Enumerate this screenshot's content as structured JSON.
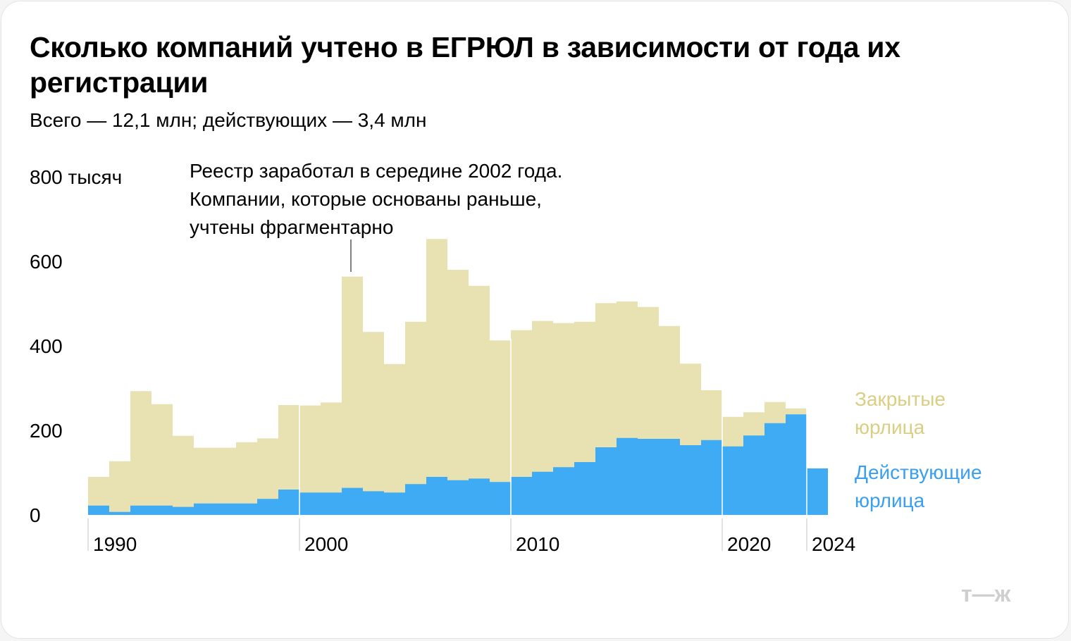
{
  "title": "Сколько компаний учтено в ЕГРЮЛ в зависимости от года их регистрации",
  "subtitle": "Всего — 12,1 млн; действующих — 3,4 млн",
  "logo_text": "т—ж",
  "chart_data": {
    "type": "area",
    "stacked": true,
    "step": true,
    "x": [
      1990,
      1991,
      1992,
      1993,
      1994,
      1995,
      1996,
      1997,
      1998,
      1999,
      2000,
      2001,
      2002,
      2003,
      2004,
      2005,
      2006,
      2007,
      2008,
      2009,
      2010,
      2011,
      2012,
      2013,
      2014,
      2015,
      2016,
      2017,
      2018,
      2019,
      2020,
      2021,
      2022,
      2023,
      2024
    ],
    "series": [
      {
        "name": "Действующие юрлица",
        "color": "#40abf5",
        "values": [
          22,
          7,
          22,
          22,
          19,
          27,
          27,
          27,
          38,
          60,
          53,
          53,
          64,
          56,
          53,
          73,
          90,
          82,
          86,
          78,
          90,
          102,
          113,
          125,
          160,
          182,
          180,
          180,
          165,
          177,
          162,
          188,
          217,
          238,
          110
        ]
      },
      {
        "name": "Закрытые юрлица",
        "color": "#e8e1b1",
        "values": [
          68,
          120,
          271,
          240,
          168,
          132,
          132,
          145,
          143,
          200,
          206,
          213,
          500,
          377,
          304,
          384,
          563,
          498,
          456,
          335,
          347,
          357,
          341,
          332,
          341,
          323,
          312,
          267,
          193,
          118,
          70,
          55,
          50,
          14,
          0
        ]
      }
    ],
    "totals": [
      90,
      127,
      293,
      262,
      187,
      159,
      159,
      172,
      181,
      260,
      259,
      266,
      564,
      433,
      357,
      457,
      653,
      580,
      542,
      413,
      437,
      459,
      454,
      457,
      501,
      505,
      492,
      447,
      358,
      295,
      232,
      243,
      267,
      252,
      110
    ],
    "xticks": [
      "1990",
      "2000",
      "2010",
      "2020",
      "2024"
    ],
    "yticks": [
      "0",
      "200",
      "400",
      "600",
      "800 тысяч"
    ],
    "ylim": [
      0,
      800
    ],
    "annotation": {
      "x": 2002,
      "lines": [
        "Реестр заработал в середине 2002 года.",
        "Компании, которые основаны раньше,",
        "учтены фрагментарно"
      ]
    },
    "legend": [
      {
        "lines": [
          "Закрытые",
          "юрлица"
        ],
        "color": "#d9ce83"
      },
      {
        "lines": [
          "Действующие",
          "юрлица"
        ],
        "color": "#3b9ff0"
      }
    ],
    "grid": false,
    "legend_position": "right"
  }
}
